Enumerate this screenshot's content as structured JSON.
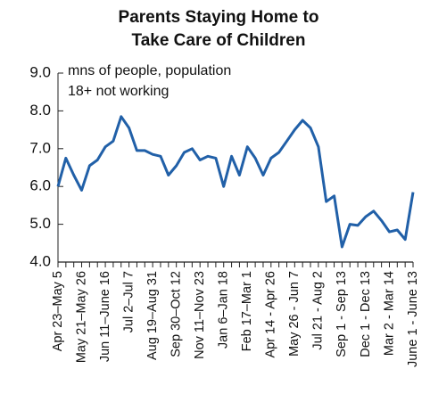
{
  "chart_data": {
    "type": "line",
    "title": [
      "Parents Staying Home to",
      "Take Care of Children"
    ],
    "annotation": [
      "mns of people, population",
      "18+ not working"
    ],
    "categories": [
      "Apr 23–May 5",
      null,
      null,
      "May 21–May 26",
      null,
      null,
      "Jun 11–June 16",
      null,
      null,
      "Jul 2–Jul 7",
      null,
      null,
      "Aug 19–Aug 31",
      null,
      null,
      "Sep 30–Oct 12",
      null,
      null,
      "Nov 11–Nov 23",
      null,
      null,
      "Jan 6–Jan 18",
      null,
      null,
      "Feb 17–Mar 1",
      null,
      null,
      "Apr 14 - Apr 26",
      null,
      null,
      "May 26 - Jun 7",
      null,
      null,
      "Jul 21 - Aug 2",
      null,
      null,
      "Sep 1 - Sep 13",
      null,
      null,
      "Dec 1 - Dec 13",
      null,
      null,
      "Mar 2 - Mar 14",
      null,
      null,
      "June 1 - June 13"
    ],
    "series": [
      {
        "name": "Parents staying home",
        "color": "#2160a8",
        "values": [
          6.0,
          6.75,
          6.3,
          5.9,
          6.55,
          6.7,
          7.05,
          7.2,
          7.85,
          7.55,
          6.95,
          6.95,
          6.85,
          6.8,
          6.3,
          6.55,
          6.9,
          7.0,
          6.7,
          6.8,
          6.75,
          6.0,
          6.8,
          6.3,
          7.05,
          6.75,
          6.3,
          6.75,
          6.9,
          7.2,
          7.5,
          7.75,
          7.55,
          7.05,
          5.6,
          5.75,
          4.4,
          5.0,
          4.97,
          5.2,
          5.35,
          5.1,
          4.8,
          4.85,
          4.6,
          5.85
        ]
      }
    ],
    "ylim": [
      4,
      9
    ],
    "yticks": [
      {
        "value": 4,
        "label": "4.0"
      },
      {
        "value": 5,
        "label": "5.0"
      },
      {
        "value": 6,
        "label": "6.0"
      },
      {
        "value": 7,
        "label": "7.0"
      },
      {
        "value": 8,
        "label": "8.0"
      },
      {
        "value": 9,
        "label": "9.0"
      }
    ]
  }
}
